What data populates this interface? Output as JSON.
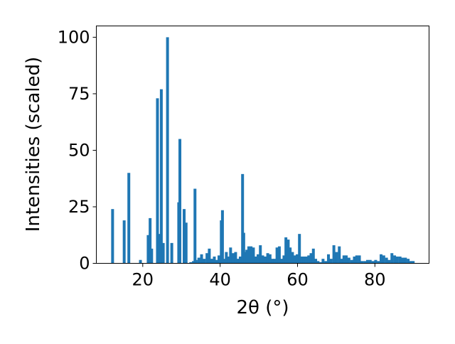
{
  "chart_data": {
    "type": "bar",
    "title": "",
    "xlabel": "2θ (°)",
    "ylabel": "Intensities (scaled)",
    "xlim": [
      8,
      94
    ],
    "ylim": [
      0,
      105
    ],
    "xticks": [
      20,
      40,
      60,
      80
    ],
    "yticks": [
      0,
      25,
      50,
      75,
      100
    ],
    "grid": false,
    "legend": "none",
    "bar_color": "#1f77b4",
    "x": [
      12.2,
      15.2,
      16.4,
      19.4,
      21.4,
      21.9,
      22.3,
      23.8,
      24.3,
      24.8,
      25.3,
      26.4,
      27.5,
      29.3,
      29.6,
      30.7,
      31.2,
      32.4,
      33.1,
      33.5,
      33.8,
      34.5,
      35.2,
      35.9,
      36.6,
      37.2,
      37.8,
      38.5,
      39.1,
      39.7,
      40.3,
      40.6,
      41.1,
      41.6,
      42.1,
      42.7,
      43.3,
      44.0,
      44.6,
      45.2,
      45.8,
      46.1,
      46.4,
      46.9,
      47.4,
      48.0,
      48.6,
      49.2,
      49.8,
      50.4,
      51.0,
      51.7,
      52.3,
      52.9,
      53.5,
      54.1,
      54.7,
      55.3,
      55.9,
      56.5,
      57.0,
      57.6,
      58.1,
      58.7,
      59.3,
      59.9,
      60.5,
      61.1,
      61.7,
      62.3,
      62.9,
      63.5,
      64.1,
      64.7,
      65.3,
      65.9,
      66.6,
      67.3,
      68.0,
      68.7,
      69.4,
      70.1,
      70.8,
      71.4,
      72.0,
      72.6,
      73.3,
      74.0,
      74.7,
      75.3,
      76.0,
      76.7,
      77.4,
      78.1,
      78.8,
      79.5,
      80.2,
      80.9,
      81.6,
      82.3,
      83.0,
      83.7,
      84.4,
      85.1,
      85.8,
      86.5,
      87.2,
      87.9,
      88.6,
      89.3,
      89.9
    ],
    "values": [
      24,
      19,
      40,
      1.5,
      12.5,
      20,
      6.5,
      73,
      13,
      77,
      9,
      100,
      9,
      27,
      55,
      24,
      18,
      0.5,
      1,
      33,
      1.5,
      2.5,
      4,
      2,
      4.5,
      6.5,
      2,
      3,
      1.5,
      3.5,
      19,
      23.5,
      2,
      5,
      3,
      7,
      4.5,
      5,
      2,
      3,
      39.5,
      13.5,
      5,
      6,
      7.5,
      7.5,
      7,
      3,
      4,
      8,
      3.5,
      3,
      4.5,
      4,
      2,
      2,
      7,
      7.5,
      2,
      3.5,
      11.5,
      10.5,
      7,
      5,
      3.5,
      4,
      13,
      3,
      3,
      3,
      3.5,
      4.5,
      6.5,
      2,
      1,
      0.5,
      2,
      1,
      4,
      2,
      8,
      5,
      7.5,
      2,
      3.5,
      3.5,
      2.5,
      1.5,
      3,
      3.5,
      3.5,
      1,
      1,
      1.5,
      1.5,
      1,
      1.5,
      1,
      4,
      3.5,
      2.5,
      1.5,
      4.5,
      3.5,
      3,
      3,
      2.5,
      2.5,
      2,
      1,
      1
    ]
  }
}
